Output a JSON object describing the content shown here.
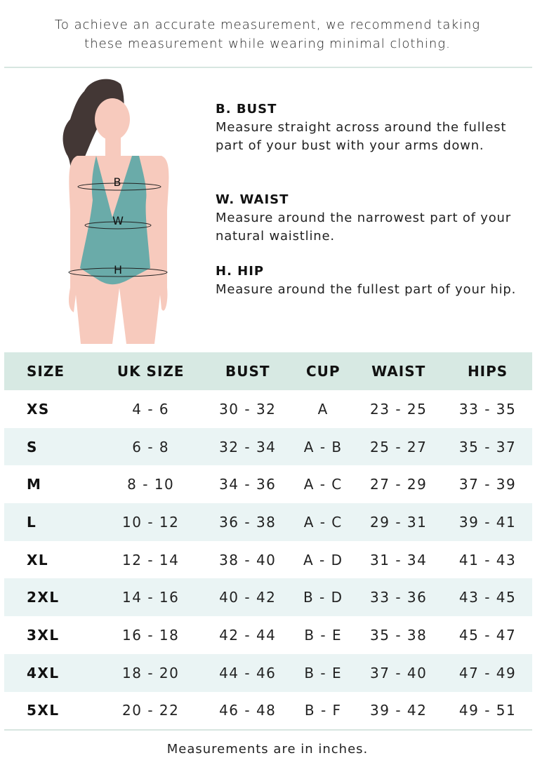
{
  "intro": {
    "line1": "To achieve an accurate measurement, we recommend taking",
    "line2": "these measurement while wearing minimal clothing."
  },
  "figure": {
    "labels": [
      "B",
      "W",
      "H"
    ],
    "colors": {
      "skin": "#f7cabd",
      "hair": "#433735",
      "swimsuit": "#6aaba9"
    }
  },
  "measurements": [
    {
      "title": "B. BUST",
      "text": "Measure straight across around the fullest part of your bust with your arms down."
    },
    {
      "title": "W. WAIST",
      "text": "Measure around the narrowest part of your natural waistline."
    },
    {
      "title": "H. HIP",
      "text": "Measure around the fullest part of your hip."
    }
  ],
  "table": {
    "headers": [
      "SIZE",
      "UK SIZE",
      "BUST",
      "CUP",
      "WAIST",
      "HIPS"
    ],
    "rows": [
      [
        "XS",
        "4 - 6",
        "30 - 32",
        "A",
        "23 - 25",
        "33 - 35"
      ],
      [
        "S",
        "6 - 8",
        "32 - 34",
        "A - B",
        "25 - 27",
        "35 - 37"
      ],
      [
        "M",
        "8 - 10",
        "34 - 36",
        "A - C",
        "27 - 29",
        "37 - 39"
      ],
      [
        "L",
        "10 - 12",
        "36 - 38",
        "A - C",
        "29 - 31",
        "39 - 41"
      ],
      [
        "XL",
        "12 - 14",
        "38 - 40",
        "A - D",
        "31 - 34",
        "41 - 43"
      ],
      [
        "2XL",
        "14 - 16",
        "40 - 42",
        "B - D",
        "33 - 36",
        "43 - 45"
      ],
      [
        "3XL",
        "16 - 18",
        "42 - 44",
        "B - E",
        "35 - 38",
        "45 - 47"
      ],
      [
        "4XL",
        "18 - 20",
        "44 - 46",
        "B - E",
        "37 - 40",
        "47 - 49"
      ],
      [
        "5XL",
        "20 - 22",
        "46 - 48",
        "B - F",
        "39 - 42",
        "49 - 51"
      ]
    ]
  },
  "footer": "Measurements are in inches."
}
